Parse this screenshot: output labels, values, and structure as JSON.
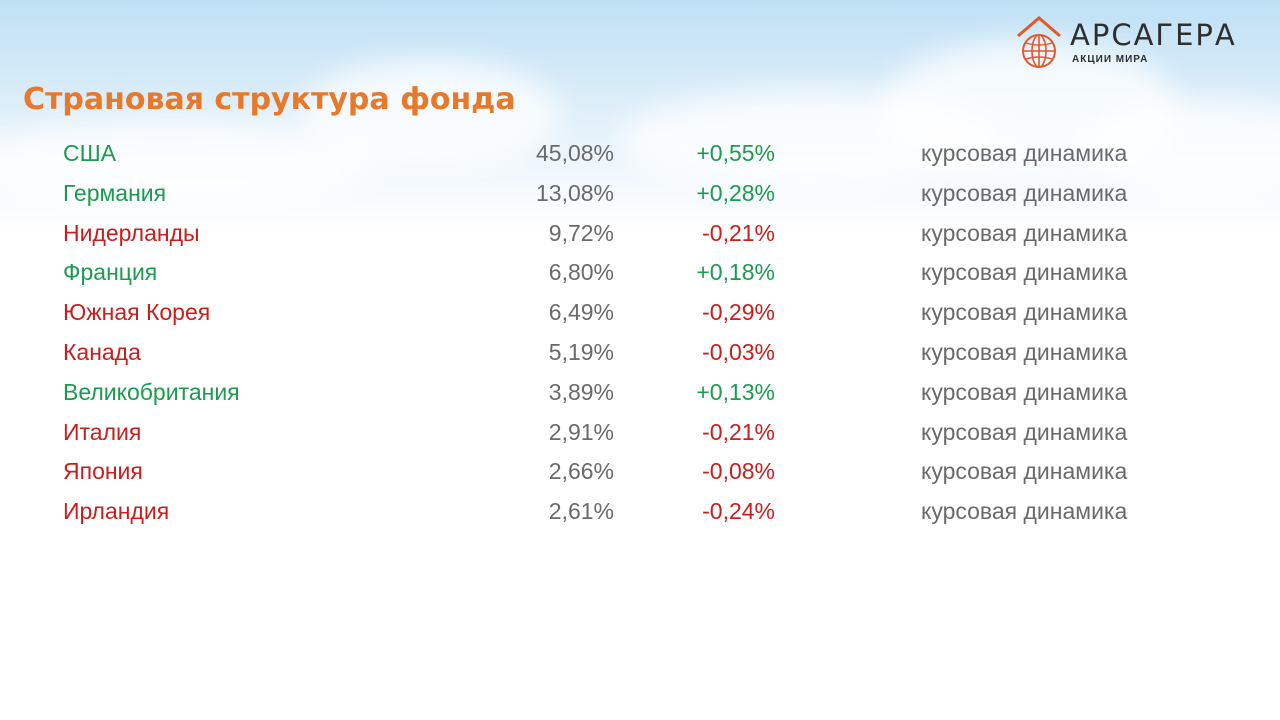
{
  "logo": {
    "name": "АРСАГЕРА",
    "subtitle": "АКЦИИ МИРА"
  },
  "title": "Страновая структура фонда",
  "colors": {
    "title": "#e8782a",
    "positive": "#1e9a50",
    "negative": "#c81e1e",
    "neutral": "#6a6a6a"
  },
  "rows": [
    {
      "country": "США",
      "weight": "45,08%",
      "change": "+0,55%",
      "trend": "positive",
      "link": "курсовая динамика"
    },
    {
      "country": "Германия",
      "weight": "13,08%",
      "change": "+0,28%",
      "trend": "positive",
      "link": "курсовая динамика"
    },
    {
      "country": "Нидерланды",
      "weight": "9,72%",
      "change": "-0,21%",
      "trend": "negative",
      "link": "курсовая динамика"
    },
    {
      "country": "Франция",
      "weight": "6,80%",
      "change": "+0,18%",
      "trend": "positive",
      "link": "курсовая динамика"
    },
    {
      "country": "Южная Корея",
      "weight": "6,49%",
      "change": "-0,29%",
      "trend": "negative",
      "link": "курсовая динамика"
    },
    {
      "country": "Канада",
      "weight": "5,19%",
      "change": "-0,03%",
      "trend": "negative",
      "link": "курсовая динамика"
    },
    {
      "country": "Великобритания",
      "weight": "3,89%",
      "change": "+0,13%",
      "trend": "positive",
      "link": "курсовая динамика"
    },
    {
      "country": "Италия",
      "weight": "2,91%",
      "change": "-0,21%",
      "trend": "negative",
      "link": "курсовая динамика"
    },
    {
      "country": "Япония",
      "weight": "2,66%",
      "change": "-0,08%",
      "trend": "negative",
      "link": "курсовая динамика"
    },
    {
      "country": "Ирландия",
      "weight": "2,61%",
      "change": "-0,24%",
      "trend": "negative",
      "link": "курсовая динамика"
    }
  ]
}
